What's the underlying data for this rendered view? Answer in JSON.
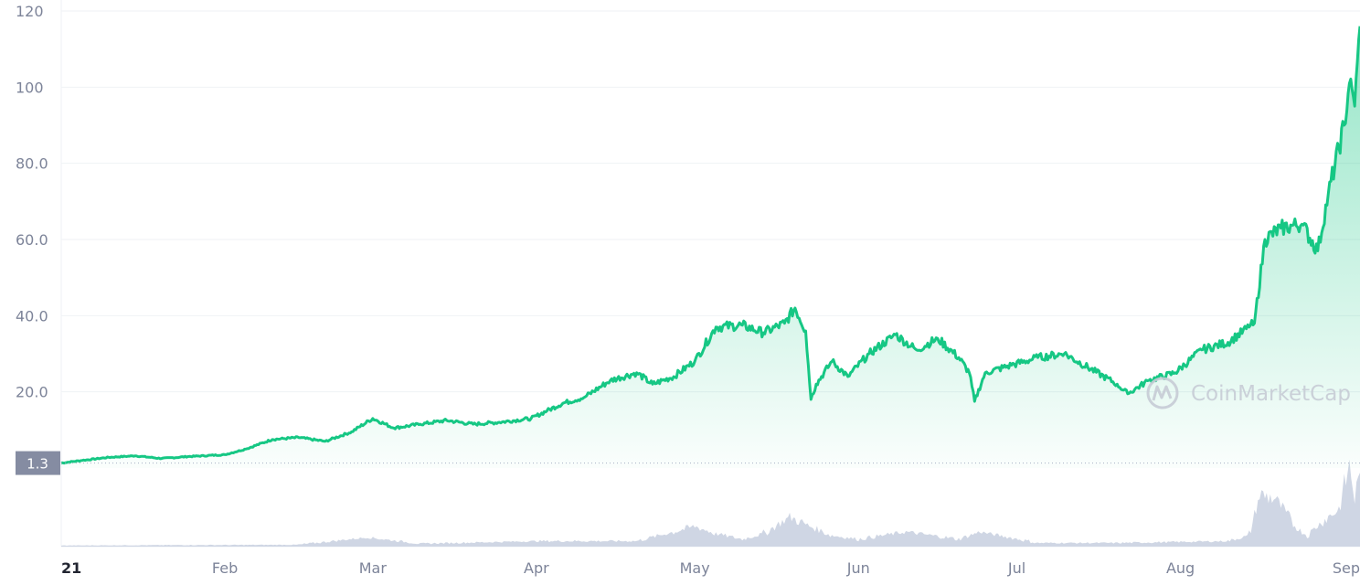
{
  "chart_data": {
    "type": "area",
    "y_axis": {
      "ticks": [
        "20.0",
        "40.0",
        "60.0",
        "80.0",
        "100",
        "120"
      ],
      "ylim": [
        0,
        120
      ]
    },
    "x_axis": {
      "tick_labels": [
        "21",
        "Feb",
        "Mar",
        "Apr",
        "May",
        "Jun",
        "Jul",
        "Aug",
        "Sep"
      ]
    },
    "reference_line": {
      "value": 1.3,
      "label": "1.3"
    },
    "grid": true,
    "legend": "none",
    "watermark": "CoinMarketCap",
    "colors": {
      "line": "#16c784",
      "volume": "#cfd6e4",
      "reference_label_bg": "#858ca2"
    },
    "series": [
      {
        "x": [
          "2021-01-01",
          "2021-01-05",
          "2021-01-10",
          "2021-01-15",
          "2021-01-20",
          "2021-01-25",
          "2021-02-01",
          "2021-02-05",
          "2021-02-10",
          "2021-02-15",
          "2021-02-20",
          "2021-02-25",
          "2021-03-01",
          "2021-03-05",
          "2021-03-10",
          "2021-03-15",
          "2021-03-20",
          "2021-03-25",
          "2021-03-31",
          "2021-04-03",
          "2021-04-06",
          "2021-04-10",
          "2021-04-15",
          "2021-04-20",
          "2021-04-23",
          "2021-04-27",
          "2021-05-01",
          "2021-05-05",
          "2021-05-10",
          "2021-05-14",
          "2021-05-18",
          "2021-05-20",
          "2021-05-22",
          "2021-05-23",
          "2021-05-24",
          "2021-05-27",
          "2021-05-30",
          "2021-06-03",
          "2021-06-08",
          "2021-06-12",
          "2021-06-16",
          "2021-06-20",
          "2021-06-22",
          "2021-06-23",
          "2021-06-25",
          "2021-06-30",
          "2021-07-05",
          "2021-07-10",
          "2021-07-15",
          "2021-07-20",
          "2021-07-22",
          "2021-07-26",
          "2021-07-31",
          "2021-08-05",
          "2021-08-10",
          "2021-08-14",
          "2021-08-15",
          "2021-08-17",
          "2021-08-20",
          "2021-08-24",
          "2021-08-27",
          "2021-08-29",
          "2021-08-31",
          "2021-09-01",
          "2021-09-02",
          "2021-09-03",
          "2021-09-04"
        ],
        "values": [
          1.3,
          2.0,
          2.8,
          3.2,
          2.5,
          3.0,
          3.5,
          5.0,
          7.5,
          8.0,
          7.0,
          9.5,
          13.0,
          10.5,
          11.5,
          12.5,
          11.5,
          12.0,
          13.0,
          15.0,
          17.0,
          18.5,
          23.0,
          25.0,
          22.0,
          24.0,
          28.0,
          37.0,
          37.5,
          35.5,
          38.0,
          42.0,
          36.0,
          18.0,
          22.0,
          28.0,
          24.0,
          30.0,
          35.0,
          31.0,
          34.0,
          29.0,
          25.0,
          17.5,
          25.0,
          27.0,
          29.0,
          30.0,
          26.0,
          22.0,
          19.5,
          23.0,
          25.0,
          31.0,
          33.0,
          37.0,
          38.0,
          60.0,
          63.0,
          64.0,
          57.0,
          72.0,
          84.0,
          90.0,
          101.0,
          95.0,
          116.0
        ]
      },
      {
        "name": "Volume",
        "x": [
          "2021-01-01",
          "2021-01-20",
          "2021-02-15",
          "2021-02-28",
          "2021-03-10",
          "2021-04-01",
          "2021-04-20",
          "2021-04-27",
          "2021-05-01",
          "2021-05-05",
          "2021-05-10",
          "2021-05-14",
          "2021-05-19",
          "2021-05-22",
          "2021-05-27",
          "2021-06-01",
          "2021-06-10",
          "2021-06-20",
          "2021-06-24",
          "2021-07-05",
          "2021-07-20",
          "2021-08-10",
          "2021-08-14",
          "2021-08-16",
          "2021-08-19",
          "2021-08-23",
          "2021-08-25",
          "2021-08-28",
          "2021-08-31",
          "2021-09-01",
          "2021-09-02",
          "2021-09-03",
          "2021-09-04"
        ],
        "values": [
          0.3,
          0.4,
          0.5,
          2.5,
          0.8,
          1.5,
          1.5,
          4.0,
          5.5,
          3.5,
          2.0,
          3.5,
          8.0,
          6.0,
          3.0,
          2.0,
          4.0,
          2.0,
          4.0,
          1.0,
          1.0,
          1.5,
          3.0,
          14.0,
          13.0,
          5.0,
          3.0,
          7.0,
          10.0,
          16.0,
          22.0,
          13.0,
          20.0
        ]
      }
    ]
  }
}
